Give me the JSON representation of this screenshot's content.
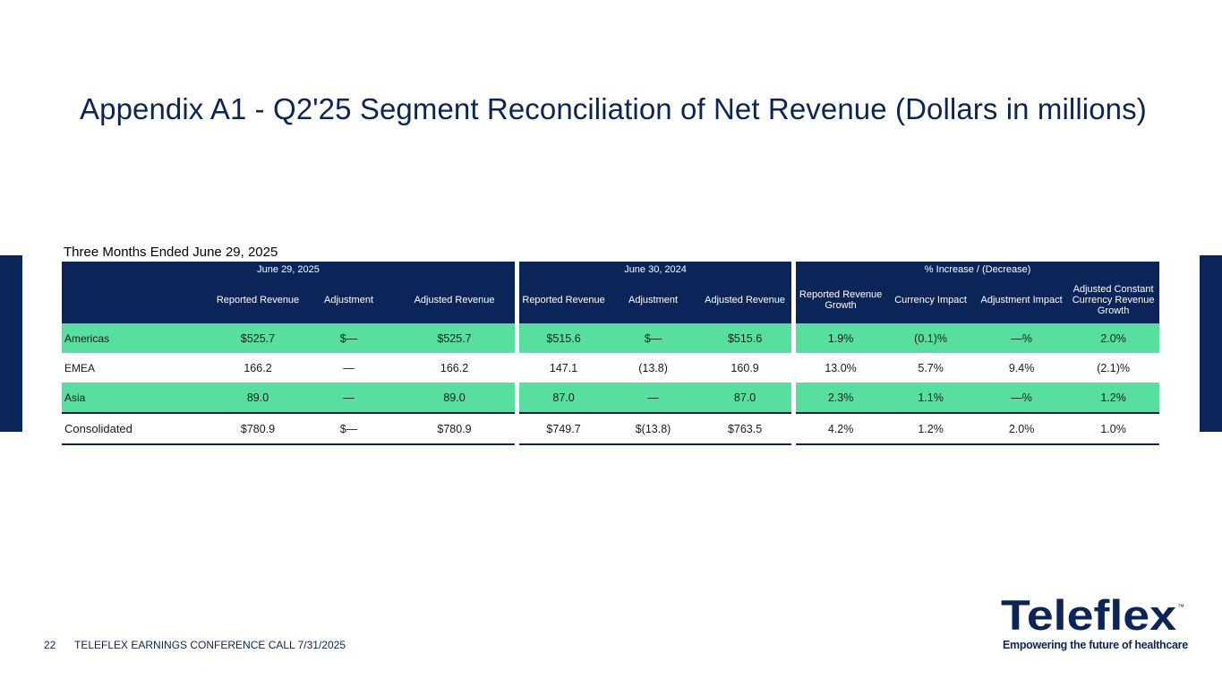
{
  "slide": {
    "title": "Appendix A1 - Q2'25 Segment Reconciliation of Net Revenue (Dollars in millions)",
    "subtitle": "Three Months Ended June 29, 2025"
  },
  "table": {
    "groups": [
      "June 29, 2025",
      "June 30, 2024",
      "% Increase / (Decrease)"
    ],
    "columns": [
      "Reported Revenue",
      "Adjustment",
      "Adjusted Revenue",
      "Reported Revenue",
      "Adjustment",
      "Adjusted Revenue",
      "Reported Revenue Growth",
      "Currency Impact",
      "Adjustment Impact",
      "Adjusted Constant Currency Revenue Growth"
    ],
    "rows": [
      {
        "label": "Americas",
        "values": [
          "$525.7",
          "$—",
          "$525.7",
          "$515.6",
          "$—",
          "$515.6",
          "1.9%",
          "(0.1)%",
          "—%",
          "2.0%"
        ]
      },
      {
        "label": "EMEA",
        "values": [
          "166.2",
          "—",
          "166.2",
          "147.1",
          "(13.8)",
          "160.9",
          "13.0%",
          "5.7%",
          "9.4%",
          "(2.1)%"
        ]
      },
      {
        "label": "Asia",
        "values": [
          "89.0",
          "—",
          "89.0",
          "87.0",
          "—",
          "87.0",
          "2.3%",
          "1.1%",
          "—%",
          "1.2%"
        ]
      },
      {
        "label": "Consolidated",
        "values": [
          "$780.9",
          "$—",
          "$780.9",
          "$749.7",
          "$(13.8)",
          "$763.5",
          "4.2%",
          "1.2%",
          "2.0%",
          "1.0%"
        ]
      }
    ]
  },
  "footer": {
    "page_number": "22",
    "text": "TELEFLEX EARNINGS CONFERENCE CALL 7/31/2025"
  },
  "logo": {
    "wordmark": "Teleflex",
    "trademark": "™",
    "tagline": "Empowering the future of healthcare"
  },
  "colors": {
    "navy": "#0b2559",
    "green": "#58de9f"
  }
}
